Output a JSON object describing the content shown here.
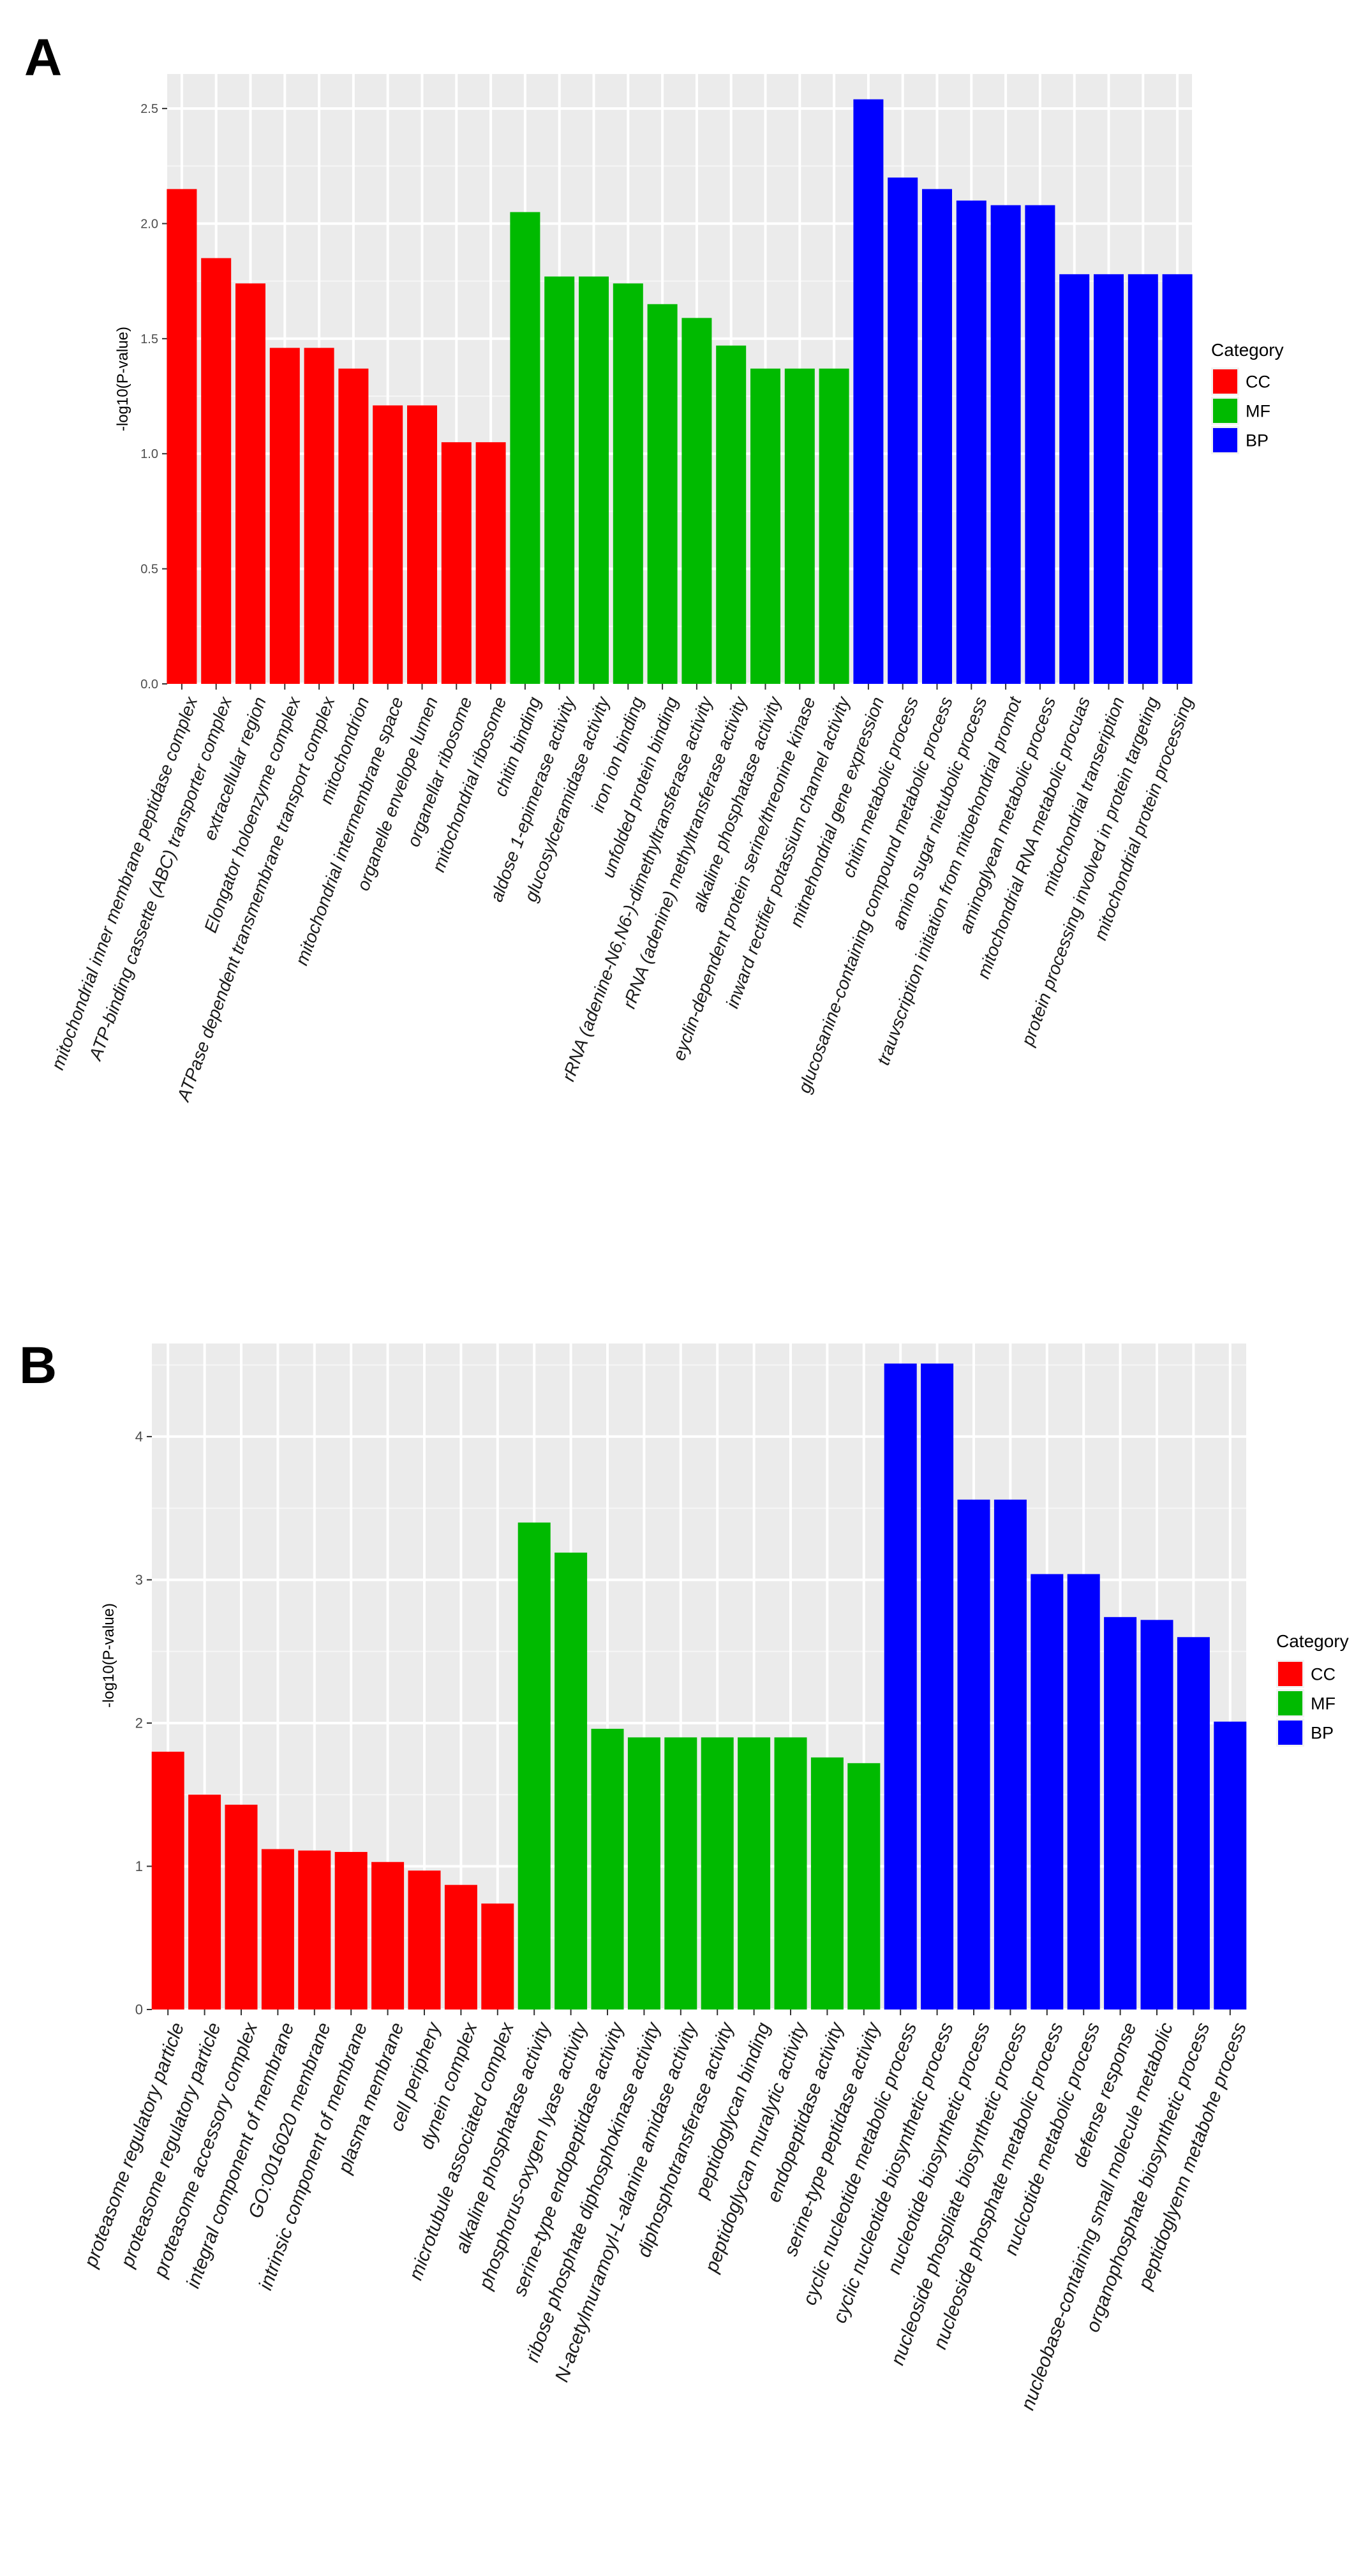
{
  "chart_data": [
    {
      "panel_label": "A",
      "type": "bar",
      "ylabel": "-log10(P-value)",
      "xlabel": "",
      "ylim": [
        0,
        2.65
      ],
      "yticks": [
        0.0,
        0.5,
        1.0,
        1.5,
        2.0,
        2.5
      ],
      "ytick_labels": [
        "0.0",
        "0.5",
        "1.0",
        "1.5",
        "2.0",
        "2.5"
      ],
      "grid": true,
      "legend_position": "right",
      "legend_title": "Category",
      "legend": [
        {
          "label": "CC",
          "color": "#ff0000"
        },
        {
          "label": "MF",
          "color": "#00ba00"
        },
        {
          "label": "BP",
          "color": "#0000ff"
        }
      ],
      "categories": [
        "mitochondrial inner membrane peptidase complex",
        "ATP-binding cassette (ABC) transporter complex",
        "extracellular region",
        "Elongator holoenzyme complex",
        "ATPase dependent transmembrane transport complex",
        "mitochondrion",
        "mitochondrial intermembrane space",
        "organelle envelope lumen",
        "organellar ribosome",
        "mitochondrial ribosome",
        "chitin binding",
        "aldose 1-epimerase activity",
        "glucosylceramidase activity",
        "iron ion binding",
        "unfolded protein binding",
        "rRNA (adenine-N6,N6-)-dimethyltransferase activity",
        "rRNA (adenine) methyltransferase activity",
        "alkaline phosphatase activity",
        "eyclin-dependent protein serine/threonine kinase",
        "inward rectifier potassium channel activity",
        "mitnehondrial gene expression",
        "chitin metabolic process",
        "glucosanine-containing compound metabolic   process",
        "amino sugar nietubolic process",
        "trauvscription initiation from mitoehondrial promot",
        "aminoglyean metabolic process",
        "mitochondrial RNA metabolic procuas",
        "mitochondrial transeription",
        "protein processing involved in protein targeting",
        "mitochondrial protein processing"
      ],
      "series_category": [
        "CC",
        "CC",
        "CC",
        "CC",
        "CC",
        "CC",
        "CC",
        "CC",
        "CC",
        "CC",
        "MF",
        "MF",
        "MF",
        "MF",
        "MF",
        "MF",
        "MF",
        "MF",
        "MF",
        "MF",
        "BP",
        "BP",
        "BP",
        "BP",
        "BP",
        "BP",
        "BP",
        "BP",
        "BP",
        "BP"
      ],
      "values": [
        2.15,
        1.85,
        1.74,
        1.46,
        1.46,
        1.37,
        1.21,
        1.21,
        1.05,
        1.05,
        2.05,
        1.77,
        1.77,
        1.74,
        1.65,
        1.59,
        1.47,
        1.37,
        1.37,
        1.37,
        2.54,
        2.2,
        2.15,
        2.1,
        2.08,
        2.08,
        1.78,
        1.78,
        1.78,
        1.78
      ]
    },
    {
      "panel_label": "B",
      "type": "bar",
      "ylabel": "-log10(P-value)",
      "xlabel": "",
      "ylim": [
        0,
        4.65
      ],
      "yticks": [
        0,
        1,
        2,
        3,
        4
      ],
      "ytick_labels": [
        "0",
        "1",
        "2",
        "3",
        "4"
      ],
      "grid": true,
      "legend_position": "right",
      "legend_title": "Category",
      "legend": [
        {
          "label": "CC",
          "color": "#ff0000"
        },
        {
          "label": "MF",
          "color": "#00ba00"
        },
        {
          "label": "BP",
          "color": "#0000ff"
        }
      ],
      "categories": [
        "proteasome regulatory particle",
        "proteasome regulatory particle",
        "proteasome accessory complex",
        "integral component of membrane",
        "GO:0016020 membrane",
        "intrinsic component of membrane",
        "plasma membrane",
        "cell periphery",
        "dynein complex",
        "microtubule associated complex",
        "alkaline phosphatase activity",
        "phosphorus-oxygen lyase activity",
        "serine-type endopeptidase activity",
        "ribose phosphate diphosphokinase  activity",
        "N-acetylmuramoyl-L-alanine amidase activity",
        "diphosphotransferase activity",
        "peptidoglycan binding",
        "peptidoglycan muralytic activity",
        "endopeptidase activity",
        "serine-type peptidase activity",
        "cyclic nucleotide metabolic process",
        "cyclic nucleotide biosynthetic process",
        "nucleotide biosynthetic process",
        "nucleoside phospliate biosynthetic process",
        "nucleoside phosphate metabolic  process",
        "nuclcotide metabolic process",
        "defense response",
        "nucleobase-containing small molecule metabolic",
        "organophosphate biosynthetic process",
        "peptidoglyenn metabohe process"
      ],
      "series_category": [
        "CC",
        "CC",
        "CC",
        "CC",
        "CC",
        "CC",
        "CC",
        "CC",
        "CC",
        "CC",
        "MF",
        "MF",
        "MF",
        "MF",
        "MF",
        "MF",
        "MF",
        "MF",
        "MF",
        "MF",
        "BP",
        "BP",
        "BP",
        "BP",
        "BP",
        "BP",
        "BP",
        "BP",
        "BP",
        "BP"
      ],
      "values": [
        1.8,
        1.5,
        1.43,
        1.12,
        1.11,
        1.1,
        1.03,
        0.97,
        0.87,
        0.74,
        3.4,
        3.19,
        1.96,
        1.9,
        1.9,
        1.9,
        1.9,
        1.9,
        1.76,
        1.72,
        4.51,
        4.51,
        3.56,
        3.56,
        3.04,
        3.04,
        2.74,
        2.72,
        2.6,
        2.01
      ]
    }
  ]
}
